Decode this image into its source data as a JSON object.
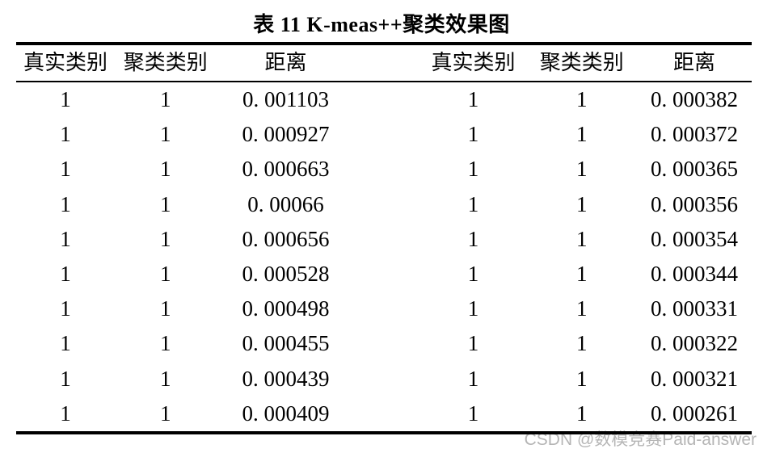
{
  "page": {
    "background": "#ffffff",
    "text_color": "#000000",
    "border_color": "#000000"
  },
  "title": "表 11 K-meas++聚类效果图",
  "table": {
    "headers": [
      "真实类别",
      "聚类类别",
      "距离",
      "真实类别",
      "聚类类别",
      "距离"
    ],
    "rows": [
      [
        "1",
        "1",
        "0. 001103",
        "1",
        "1",
        "0. 000382"
      ],
      [
        "1",
        "1",
        "0. 000927",
        "1",
        "1",
        "0. 000372"
      ],
      [
        "1",
        "1",
        "0. 000663",
        "1",
        "1",
        "0. 000365"
      ],
      [
        "1",
        "1",
        "0. 00066",
        "1",
        "1",
        "0. 000356"
      ],
      [
        "1",
        "1",
        "0. 000656",
        "1",
        "1",
        "0. 000354"
      ],
      [
        "1",
        "1",
        "0. 000528",
        "1",
        "1",
        "0. 000344"
      ],
      [
        "1",
        "1",
        "0. 000498",
        "1",
        "1",
        "0. 000331"
      ],
      [
        "1",
        "1",
        "0. 000455",
        "1",
        "1",
        "0. 000322"
      ],
      [
        "1",
        "1",
        "0. 000439",
        "1",
        "1",
        "0. 000321"
      ],
      [
        "1",
        "1",
        "0. 000409",
        "1",
        "1",
        "0. 000261"
      ]
    ]
  },
  "watermark": {
    "text": "CSDN @数模竞赛Paid-answer",
    "color": "#b5b5b5"
  }
}
